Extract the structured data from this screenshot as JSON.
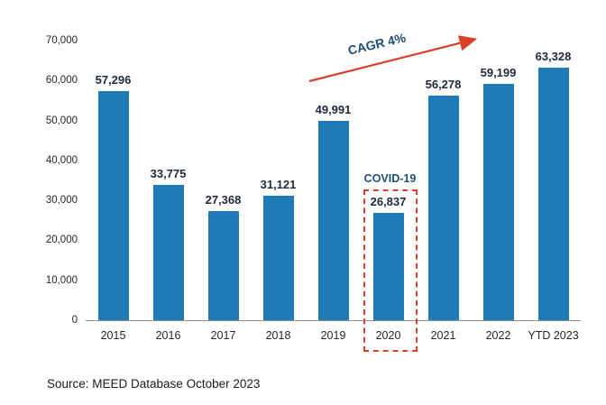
{
  "chart_data": {
    "type": "bar",
    "categories": [
      "2015",
      "2016",
      "2017",
      "2018",
      "2019",
      "2020",
      "2021",
      "2022",
      "YTD 2023"
    ],
    "values": [
      57296,
      33775,
      27368,
      31121,
      49991,
      26837,
      56278,
      59199,
      63328
    ],
    "value_labels": [
      "57,296",
      "33,775",
      "27,368",
      "31,121",
      "49,991",
      "26,837",
      "56,278",
      "59,199",
      "63,328"
    ],
    "title": "",
    "xlabel": "",
    "ylabel": "",
    "ylim": [
      0,
      70000
    ],
    "ytick_step": 10000,
    "ytick_labels": [
      "70,000",
      "60,000",
      "50,000",
      "40,000",
      "30,000",
      "20,000",
      "10,000",
      "0"
    ],
    "grid": false,
    "legend": false,
    "annotations": {
      "cagr_label": "CAGR 4%",
      "covid_label": "COVID-19",
      "covid_category": "2020"
    }
  },
  "source_note": "Source: MEED Database October 2023",
  "colors": {
    "bar_blue": "#1F7BB8",
    "accent_red": "#D9402A",
    "annotation_blue": "#1F4E79",
    "text_dark": "#1F2A3A"
  }
}
